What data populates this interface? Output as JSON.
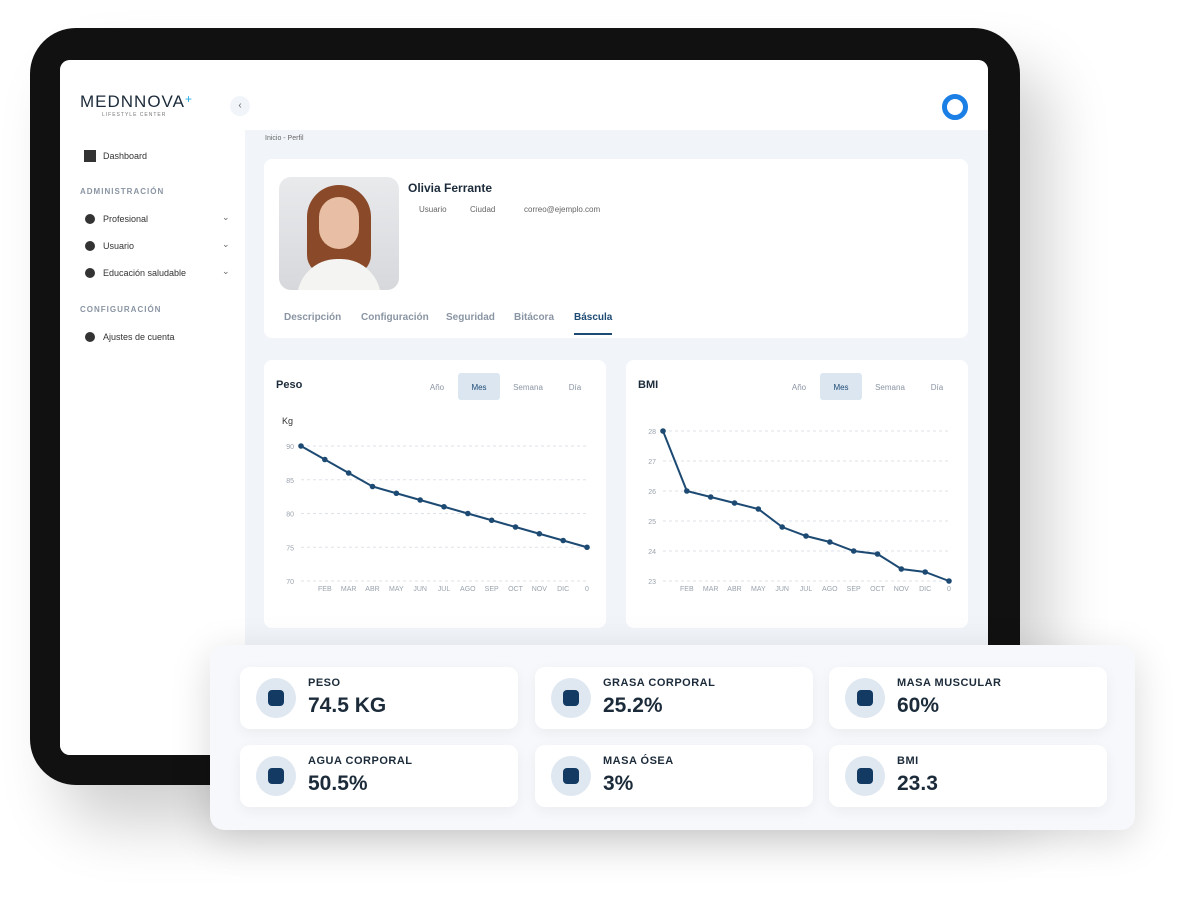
{
  "brand": {
    "name": "MEDNNOVA",
    "plus": "+",
    "tagline": "LIFESTYLE CENTER"
  },
  "sidebar": {
    "dashboard": "Dashboard",
    "sections": [
      {
        "title": "ADMINISTRACIÓN",
        "items": [
          "Profesional",
          "Usuario",
          "Educación saludable"
        ]
      },
      {
        "title": "CONFIGURACIÓN",
        "items": [
          "Ajustes de cuenta"
        ]
      }
    ]
  },
  "breadcrumb": "Inicio - Perfil",
  "profile": {
    "name": "Olivia Ferrante",
    "role": "Usuario",
    "city": "Ciudad",
    "email": "correo@ejemplo.com"
  },
  "tabs": [
    "Descripción",
    "Configuración",
    "Seguridad",
    "Bitácora",
    "Báscula"
  ],
  "active_tab": 4,
  "chart_data": [
    {
      "type": "line",
      "title": "Peso",
      "ylabel": "Kg",
      "periods": [
        "Año",
        "Mes",
        "Semana",
        "Día"
      ],
      "active_period": 1,
      "categories": [
        null,
        "FEB",
        "MAR",
        "ABR",
        "MAY",
        "JUN",
        "JUL",
        "AGO",
        "SEP",
        "OCT",
        "NOV",
        "DIC",
        "0"
      ],
      "values": [
        90,
        88,
        86,
        84,
        83,
        82,
        81,
        80,
        79,
        78,
        77,
        76,
        75
      ],
      "ylim": [
        70,
        90
      ],
      "yticks": [
        70,
        75,
        80,
        85,
        90
      ],
      "color": "#1d4a73",
      "grid": true
    },
    {
      "type": "line",
      "title": "BMI",
      "periods": [
        "Año",
        "Mes",
        "Semana",
        "Día"
      ],
      "active_period": 1,
      "categories": [
        null,
        "FEB",
        "MAR",
        "ABR",
        "MAY",
        "JUN",
        "JUL",
        "AGO",
        "SEP",
        "OCT",
        "NOV",
        "DIC",
        "0"
      ],
      "values": [
        28,
        26,
        25.8,
        25.6,
        25.4,
        24.8,
        24.5,
        24.3,
        24.0,
        23.9,
        23.4,
        23.3,
        23.0
      ],
      "ylim": [
        23,
        28
      ],
      "yticks": [
        23,
        24,
        25,
        26,
        27,
        28
      ],
      "color": "#1d4a73",
      "grid": true
    }
  ],
  "stats": [
    {
      "label": "PESO",
      "value": "74.5 KG"
    },
    {
      "label": "GRASA CORPORAL",
      "value": "25.2%"
    },
    {
      "label": "MASA MUSCULAR",
      "value": "60%"
    },
    {
      "label": "AGUA CORPORAL",
      "value": "50.5%"
    },
    {
      "label": "MASA ÓSEA",
      "value": "3%"
    },
    {
      "label": "BMI",
      "value": "23.3"
    }
  ]
}
